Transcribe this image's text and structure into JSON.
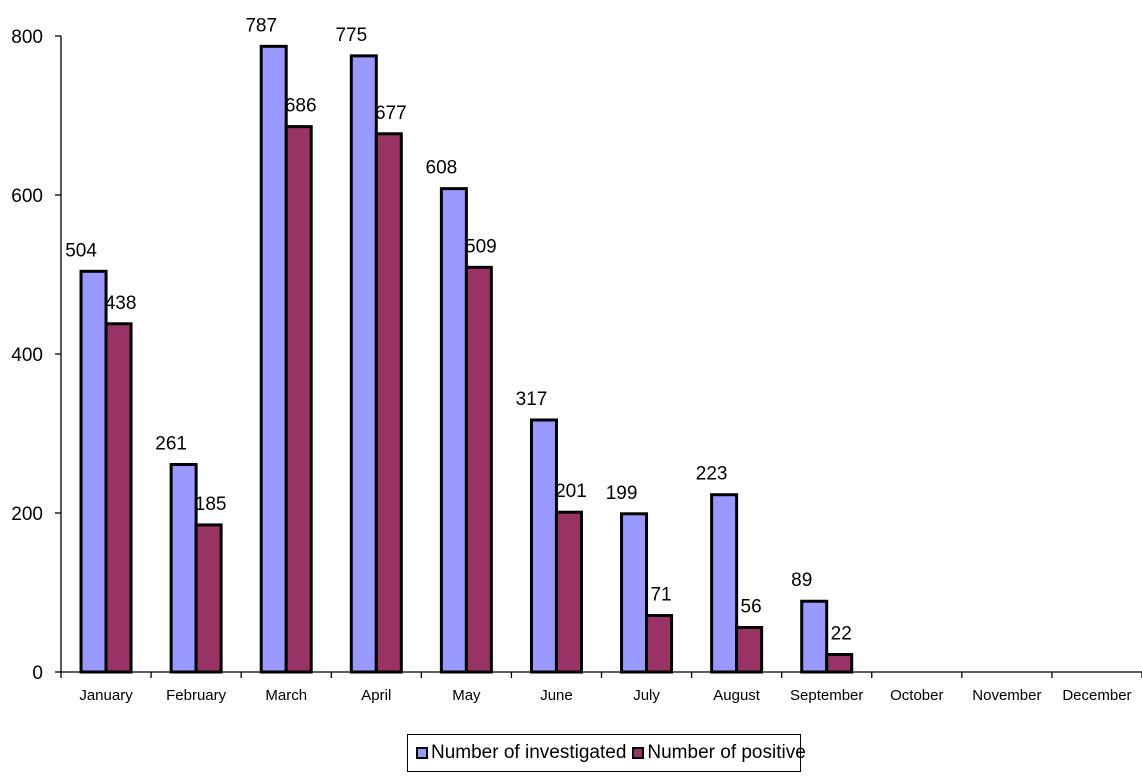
{
  "chart_data": {
    "type": "bar",
    "categories": [
      "January",
      "February",
      "March",
      "April",
      "May",
      "June",
      "July",
      "August",
      "September",
      "October",
      "November",
      "December"
    ],
    "series": [
      {
        "name": "Number of investigated",
        "color": "#9999ff",
        "values": [
          504,
          261,
          787,
          775,
          608,
          317,
          199,
          223,
          89,
          null,
          null,
          null
        ]
      },
      {
        "name": "Number of positive",
        "color": "#993366",
        "values": [
          438,
          185,
          686,
          677,
          509,
          201,
          71,
          56,
          22,
          null,
          null,
          null
        ]
      }
    ],
    "yticks": [
      0,
      200,
      400,
      600,
      800
    ],
    "ylim": [
      0,
      800
    ],
    "grid": false,
    "legend_position": "bottom",
    "title": "",
    "xlabel": "",
    "ylabel": ""
  }
}
